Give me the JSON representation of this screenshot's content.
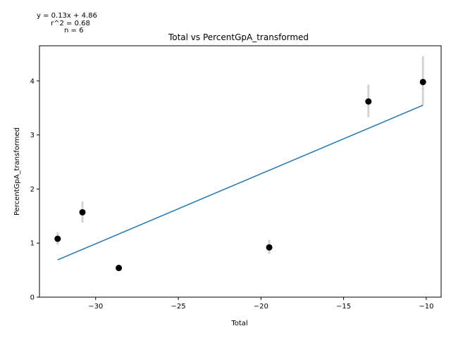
{
  "chart_data": {
    "type": "scatter",
    "title": "Total vs PercentGpA_transformed",
    "xlabel": "Total",
    "ylabel": "PercentGpA_transformed",
    "xlim": [
      -33.4,
      -9.1
    ],
    "ylim": [
      0,
      4.65
    ],
    "xticks": [
      -30,
      -25,
      -20,
      -15,
      -10
    ],
    "xtick_labels": [
      "−30",
      "−25",
      "−20",
      "−15",
      "−10"
    ],
    "yticks": [
      0,
      1,
      2,
      3,
      4
    ],
    "ytick_labels": [
      "0",
      "1",
      "2",
      "3",
      "4"
    ],
    "grid": false,
    "points": [
      {
        "x": -32.3,
        "y": 1.08,
        "err_low": 0.97,
        "err_high": 1.2
      },
      {
        "x": -30.8,
        "y": 1.57,
        "err_low": 1.38,
        "err_high": 1.77
      },
      {
        "x": -28.6,
        "y": 0.54,
        "err_low": 0.54,
        "err_high": 0.54
      },
      {
        "x": -19.5,
        "y": 0.92,
        "err_low": 0.8,
        "err_high": 1.06
      },
      {
        "x": -13.5,
        "y": 3.62,
        "err_low": 3.33,
        "err_high": 3.93
      },
      {
        "x": -10.2,
        "y": 3.98,
        "err_low": 3.55,
        "err_high": 4.46
      }
    ],
    "fit_line": {
      "x": [
        -32.3,
        -10.2
      ],
      "y": [
        0.69,
        3.55
      ]
    },
    "annotations": [
      "y = 0.13x + 4.86",
      "r^2 = 0.68",
      "n = 6"
    ],
    "colors": {
      "points": "#000000",
      "errorbars": "#d3d3d3",
      "fit_line": "#1f77b4"
    }
  }
}
